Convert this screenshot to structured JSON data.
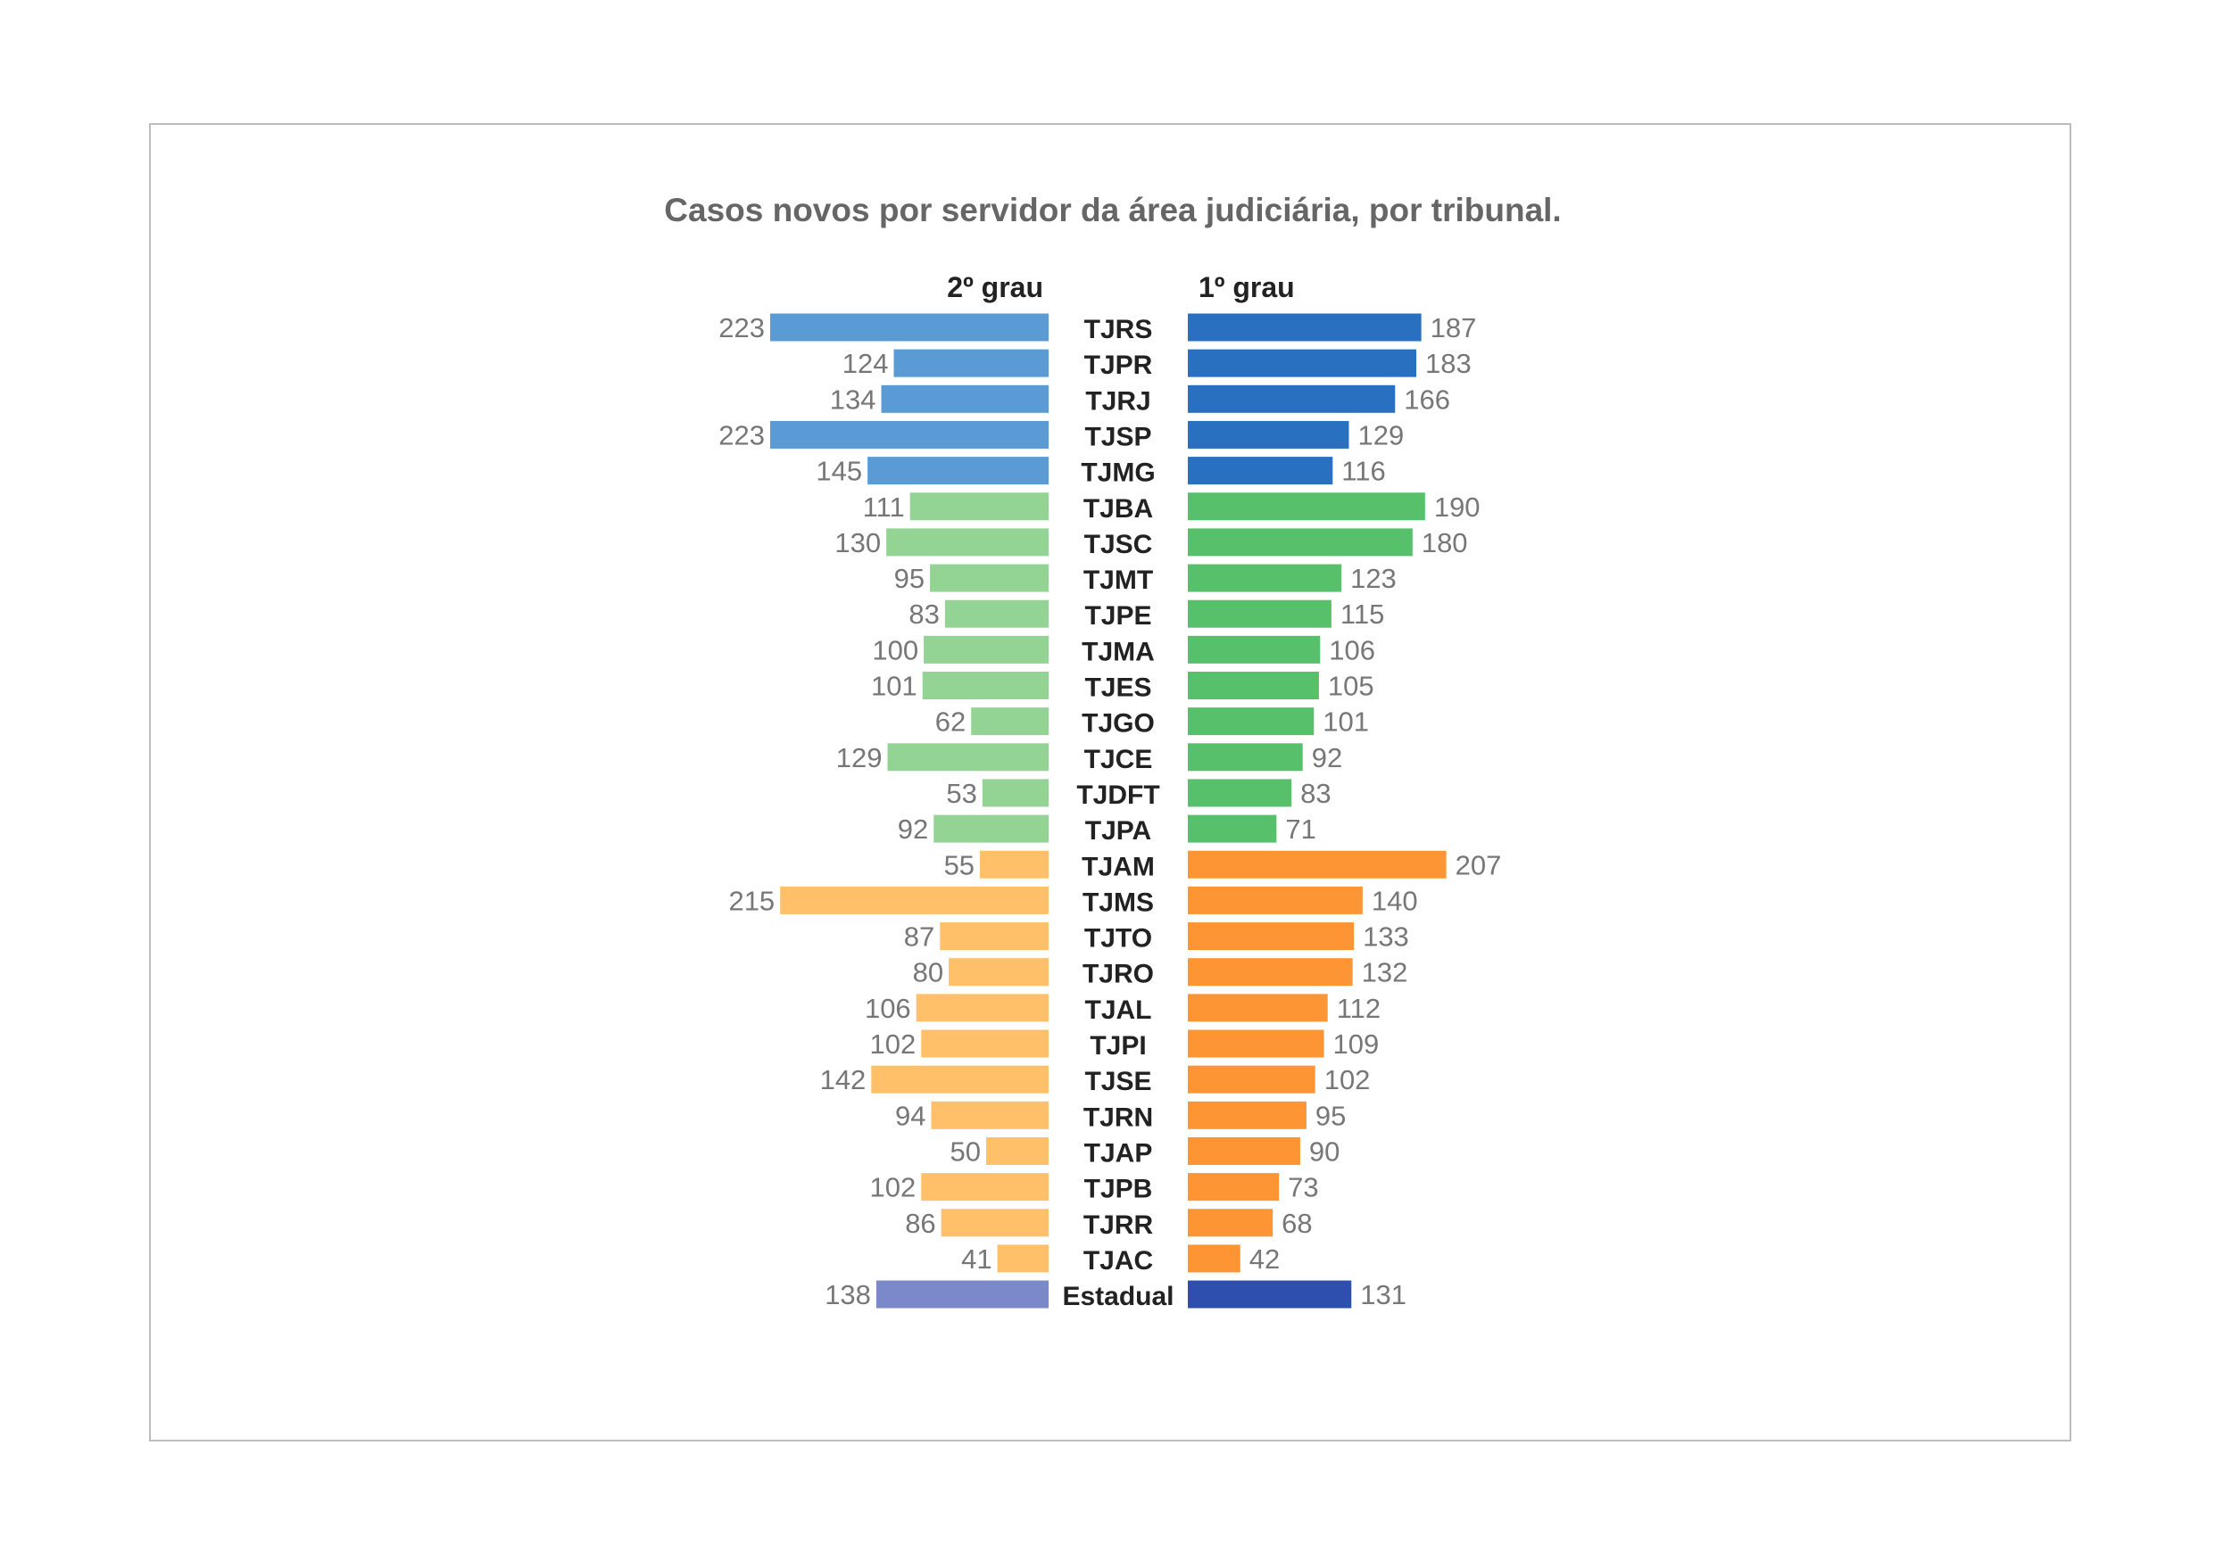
{
  "chart_data": {
    "type": "bar",
    "title": "Casos novos por servidor da área judiciária, por tribunal.",
    "categories": [
      "TJRS",
      "TJPR",
      "TJRJ",
      "TJSP",
      "TJMG",
      "TJBA",
      "TJSC",
      "TJMT",
      "TJPE",
      "TJMA",
      "TJES",
      "TJGO",
      "TJCE",
      "TJDFT",
      "TJPA",
      "TJAM",
      "TJMS",
      "TJTO",
      "TJRO",
      "TJAL",
      "TJPI",
      "TJSE",
      "TJRN",
      "TJAP",
      "TJPB",
      "TJRR",
      "TJAC",
      "Estadual"
    ],
    "groups": [
      "grande",
      "grande",
      "grande",
      "grande",
      "grande",
      "medio",
      "medio",
      "medio",
      "medio",
      "medio",
      "medio",
      "medio",
      "medio",
      "medio",
      "medio",
      "pequeno",
      "pequeno",
      "pequeno",
      "pequeno",
      "pequeno",
      "pequeno",
      "pequeno",
      "pequeno",
      "pequeno",
      "pequeno",
      "pequeno",
      "pequeno",
      "total"
    ],
    "series": [
      {
        "name": "2º grau",
        "side": "left",
        "values": [
          223,
          124,
          134,
          223,
          145,
          111,
          130,
          95,
          83,
          100,
          101,
          62,
          129,
          53,
          92,
          55,
          215,
          87,
          80,
          106,
          102,
          142,
          94,
          50,
          102,
          86,
          41,
          138
        ]
      },
      {
        "name": "1º grau",
        "side": "right",
        "values": [
          187,
          183,
          166,
          129,
          116,
          190,
          180,
          123,
          115,
          106,
          105,
          101,
          92,
          83,
          71,
          207,
          140,
          133,
          132,
          112,
          109,
          102,
          95,
          90,
          73,
          68,
          42,
          131
        ]
      }
    ],
    "xlim": [
      0,
      230
    ],
    "grid": false,
    "legend": "column headers above bars",
    "colors": {
      "left": {
        "grande": "#5b9bd5",
        "medio": "#93d393",
        "pequeno": "#ffc069",
        "total": "#7b88c9"
      },
      "right": {
        "grande": "#2a70c0",
        "medio": "#57c06b",
        "pequeno": "#fd9535",
        "total": "#2f4fae"
      }
    }
  }
}
